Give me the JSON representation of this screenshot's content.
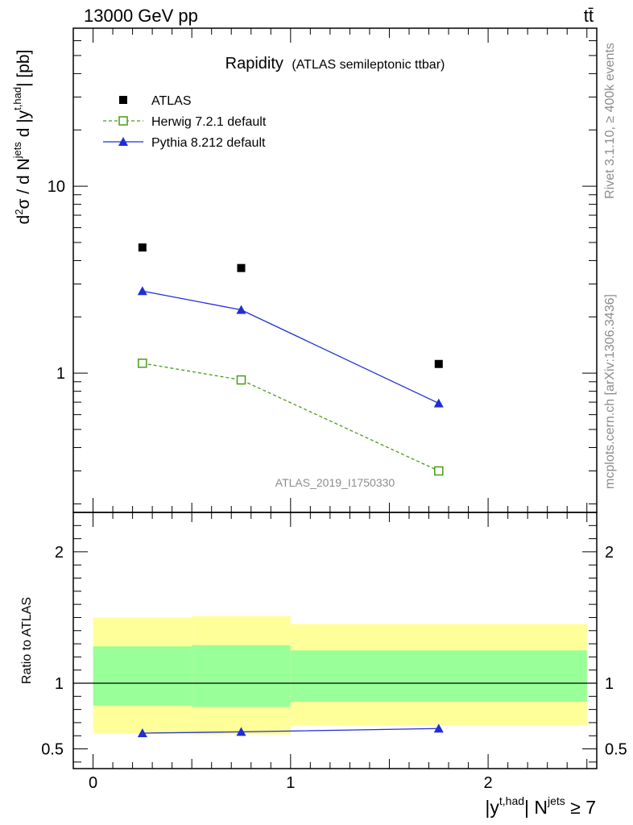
{
  "header": {
    "left": "13000 GeV pp",
    "right": "tt̄"
  },
  "side_labels": {
    "rivet": "Rivet 3.1.10, ≥ 400k events",
    "mcplots": "mcplots.cern.ch [arXiv:1306.3436]"
  },
  "chart_data": [
    {
      "type": "scatter",
      "title": "Rapidity",
      "subtitle": "(ATLAS semileptonic ttbar)",
      "analysis_label": "ATLAS_2019_I1750330",
      "ylabel": "d²σ / d N^jets d |y^t,had| [pb]",
      "xlim": [
        -0.1,
        2.55
      ],
      "ylim": [
        0.18,
        70
      ],
      "yscale": "log",
      "yticks": [
        1,
        10
      ],
      "legend_position": "top-left",
      "series": [
        {
          "name": "ATLAS",
          "color": "#000000",
          "marker": "filled-square",
          "line": "none",
          "x": [
            0.25,
            0.75,
            1.75
          ],
          "y": [
            4.7,
            3.65,
            1.12
          ]
        },
        {
          "name": "Herwig 7.2.1 default",
          "color": "#4a9a16",
          "marker": "open-square",
          "line": "dashed",
          "x": [
            0.25,
            0.75,
            1.75
          ],
          "y": [
            1.13,
            0.92,
            0.3
          ]
        },
        {
          "name": "Pythia 8.212 default",
          "color": "#1f2ed6",
          "marker": "filled-triangle",
          "line": "solid",
          "x": [
            0.25,
            0.75,
            1.75
          ],
          "y": [
            2.75,
            2.18,
            0.69
          ]
        }
      ]
    },
    {
      "type": "line",
      "ylabel": "Ratio to ATLAS",
      "xlabel": "|y^t,had| N^jets ≥ 7",
      "xlim": [
        -0.1,
        2.55
      ],
      "ylim": [
        0.35,
        2.3
      ],
      "xticks": [
        0,
        1,
        2
      ],
      "yticks": [
        0.5,
        1,
        2
      ],
      "reference_line": 1,
      "bands": [
        {
          "x_low": 0.0,
          "x_high": 0.5,
          "yellow": [
            0.62,
            1.5
          ],
          "green": [
            0.83,
            1.28
          ]
        },
        {
          "x_low": 0.5,
          "x_high": 1.0,
          "yellow": [
            0.61,
            1.51
          ],
          "green": [
            0.82,
            1.29
          ]
        },
        {
          "x_low": 1.0,
          "x_high": 2.5,
          "yellow": [
            0.68,
            1.45
          ],
          "green": [
            0.86,
            1.25
          ]
        }
      ],
      "series": [
        {
          "name": "Pythia 8.212 default",
          "color": "#1f2ed6",
          "marker": "filled-triangle",
          "x": [
            0.25,
            0.75,
            1.75
          ],
          "y": [
            0.62,
            0.63,
            0.655
          ],
          "err": [
            0.02,
            0.02,
            0.025
          ]
        }
      ]
    }
  ]
}
